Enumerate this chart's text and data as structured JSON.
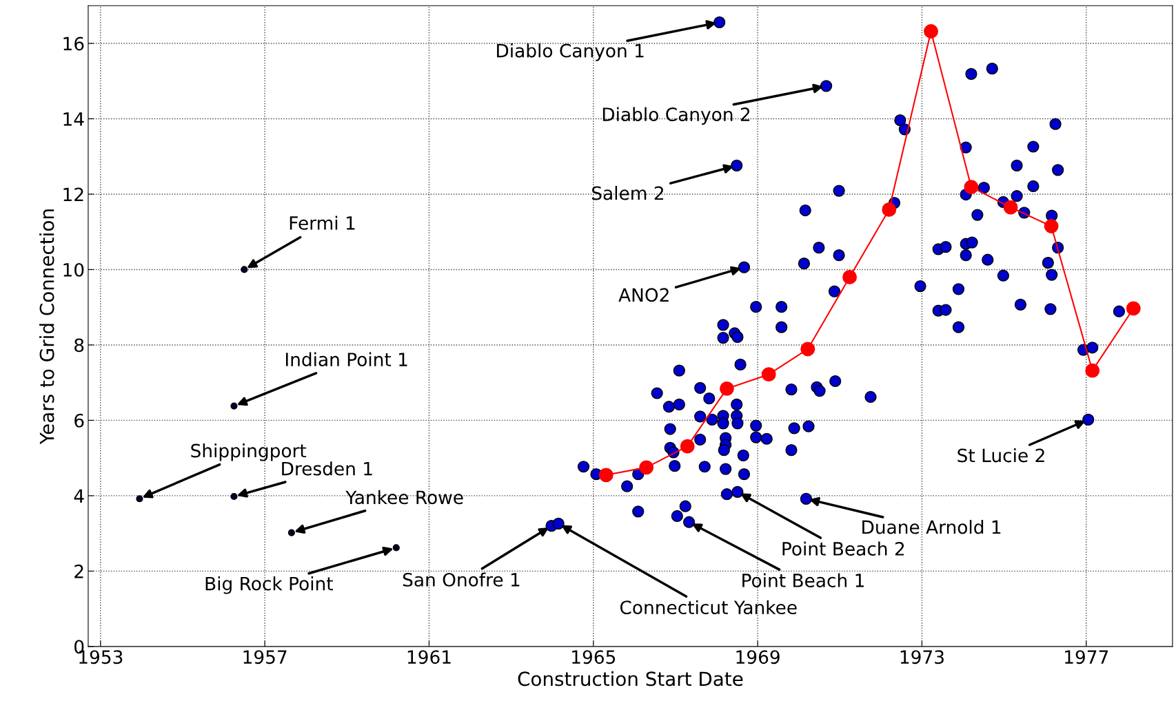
{
  "chart_data": {
    "type": "scatter",
    "xlabel": "Construction Start Date",
    "ylabel": "Years to Grid Connection",
    "xlim": [
      1952.7,
      1979.1
    ],
    "ylim": [
      0,
      17
    ],
    "xticks": [
      1953,
      1957,
      1961,
      1965,
      1969,
      1973,
      1977
    ],
    "yticks": [
      0,
      2,
      4,
      6,
      8,
      10,
      12,
      14,
      16
    ],
    "grid": true,
    "marker": "circle",
    "series": [
      {
        "color": "#0000cc",
        "x": [
          1964.76,
          1965.07,
          1965.82,
          1966.09,
          1966.09,
          1966.55,
          1966.84,
          1966.87,
          1966.87,
          1966.95,
          1966.98,
          1967.09,
          1967.09,
          1967.04,
          1967.33,
          1967.24,
          1967.6,
          1967.6,
          1967.6,
          1967.71,
          1967.82,
          1967.89,
          1968.16,
          1968.16,
          1968.16,
          1968.16,
          1968.22,
          1968.22,
          1968.18,
          1968.25,
          1968.51,
          1968.22,
          1968.44,
          1968.51,
          1968.49,
          1968.49,
          1968.51,
          1968.58,
          1968.65,
          1968.67,
          1968.96,
          1968.96,
          1968.96,
          1969.22,
          1969.58,
          1969.58,
          1969.82,
          1969.82,
          1969.89,
          1970.16,
          1970.13,
          1970.24,
          1970.49,
          1970.44,
          1970.51,
          1970.87,
          1970.89,
          1970.98,
          1970.98,
          1971.75,
          1972.33,
          1972.47,
          1972.58,
          1972.96,
          1973.4,
          1973.58,
          1973.4,
          1973.58,
          1973.89,
          1973.89,
          1974.07,
          1974.22,
          1974.07,
          1974.07,
          1974.07,
          1974.2,
          1974.71,
          1974.51,
          1974.35,
          1974.6,
          1974.98,
          1974.98,
          1975.31,
          1975.31,
          1975.49,
          1975.4,
          1975.71,
          1975.71,
          1976.07,
          1976.16,
          1976.13,
          1976.16,
          1976.25,
          1976.31,
          1976.31,
          1976.93,
          1977.15,
          1977.05,
          1977.8,
          1968.07,
          1970.67,
          1968.49,
          1968.67,
          1970.18,
          1963.98,
          1964.15
        ],
        "values": [
          4.77,
          4.57,
          4.25,
          3.58,
          4.57,
          6.72,
          6.36,
          5.77,
          5.27,
          5.15,
          4.79,
          6.42,
          7.32,
          3.46,
          3.3,
          3.72,
          6.86,
          6.1,
          5.49,
          4.77,
          6.58,
          6.02,
          8.53,
          8.19,
          6.12,
          5.92,
          5.53,
          5.35,
          5.21,
          4.04,
          4.1,
          4.71,
          8.31,
          8.21,
          6.42,
          6.12,
          5.92,
          7.48,
          5.07,
          4.57,
          9.01,
          5.86,
          5.55,
          5.51,
          9.01,
          8.47,
          6.82,
          5.21,
          5.79,
          11.57,
          10.16,
          5.84,
          10.58,
          6.88,
          6.78,
          9.42,
          7.04,
          12.09,
          10.38,
          6.62,
          11.77,
          13.96,
          13.72,
          9.56,
          10.54,
          10.6,
          8.91,
          8.93,
          8.47,
          9.48,
          10.68,
          10.72,
          10.38,
          11.99,
          13.24,
          15.19,
          15.33,
          12.17,
          11.45,
          10.26,
          9.84,
          11.79,
          11.95,
          12.76,
          11.51,
          9.07,
          13.26,
          12.21,
          10.18,
          9.86,
          8.95,
          11.43,
          13.86,
          12.64,
          10.58,
          7.87,
          7.93,
          6.02,
          8.89,
          16.56,
          14.87,
          12.76,
          10.06,
          3.92,
          3.2,
          3.26
        ]
      },
      {
        "color": "#000033",
        "x": [
          1953.95,
          1956.25,
          1956.25,
          1956.5,
          1957.65,
          1960.2
        ],
        "values": [
          3.92,
          3.98,
          6.38,
          10.0,
          3.02,
          2.62
        ]
      },
      {
        "type": "line",
        "color": "#ff0000",
        "x": [
          1965.31,
          1966.29,
          1967.29,
          1968.25,
          1969.27,
          1970.22,
          1971.24,
          1972.2,
          1973.22,
          1974.2,
          1975.16,
          1976.15,
          1977.15,
          1978.15
        ],
        "values": [
          4.55,
          4.75,
          5.31,
          6.84,
          7.22,
          7.89,
          9.8,
          11.59,
          16.32,
          12.19,
          11.65,
          11.15,
          7.32,
          8.97
        ]
      }
    ],
    "annotations": [
      {
        "text": "Diablo Canyon 1",
        "x": 1968.07,
        "y": 16.56
      },
      {
        "text": "Diablo Canyon 2",
        "x": 1970.67,
        "y": 14.87
      },
      {
        "text": "Salem 2",
        "x": 1968.49,
        "y": 12.76
      },
      {
        "text": "ANO2",
        "x": 1968.67,
        "y": 10.06
      },
      {
        "text": "Fermi 1",
        "x": 1956.5,
        "y": 10.0
      },
      {
        "text": "Indian Point 1",
        "x": 1956.25,
        "y": 6.38
      },
      {
        "text": "Shippingport",
        "x": 1953.95,
        "y": 3.92
      },
      {
        "text": "Dresden 1",
        "x": 1956.25,
        "y": 3.98
      },
      {
        "text": "Yankee Rowe",
        "x": 1957.65,
        "y": 3.02
      },
      {
        "text": "Big Rock Point",
        "x": 1960.2,
        "y": 2.62
      },
      {
        "text": "San Onofre 1",
        "x": 1963.98,
        "y": 3.2
      },
      {
        "text": "Connecticut Yankee",
        "x": 1964.15,
        "y": 3.26
      },
      {
        "text": "Point Beach 1",
        "x": 1967.33,
        "y": 3.3
      },
      {
        "text": "Point Beach 2",
        "x": 1968.51,
        "y": 4.1
      },
      {
        "text": "Duane Arnold 1",
        "x": 1970.18,
        "y": 3.92
      },
      {
        "text": "St Lucie 2",
        "x": 1977.05,
        "y": 6.02
      }
    ]
  }
}
